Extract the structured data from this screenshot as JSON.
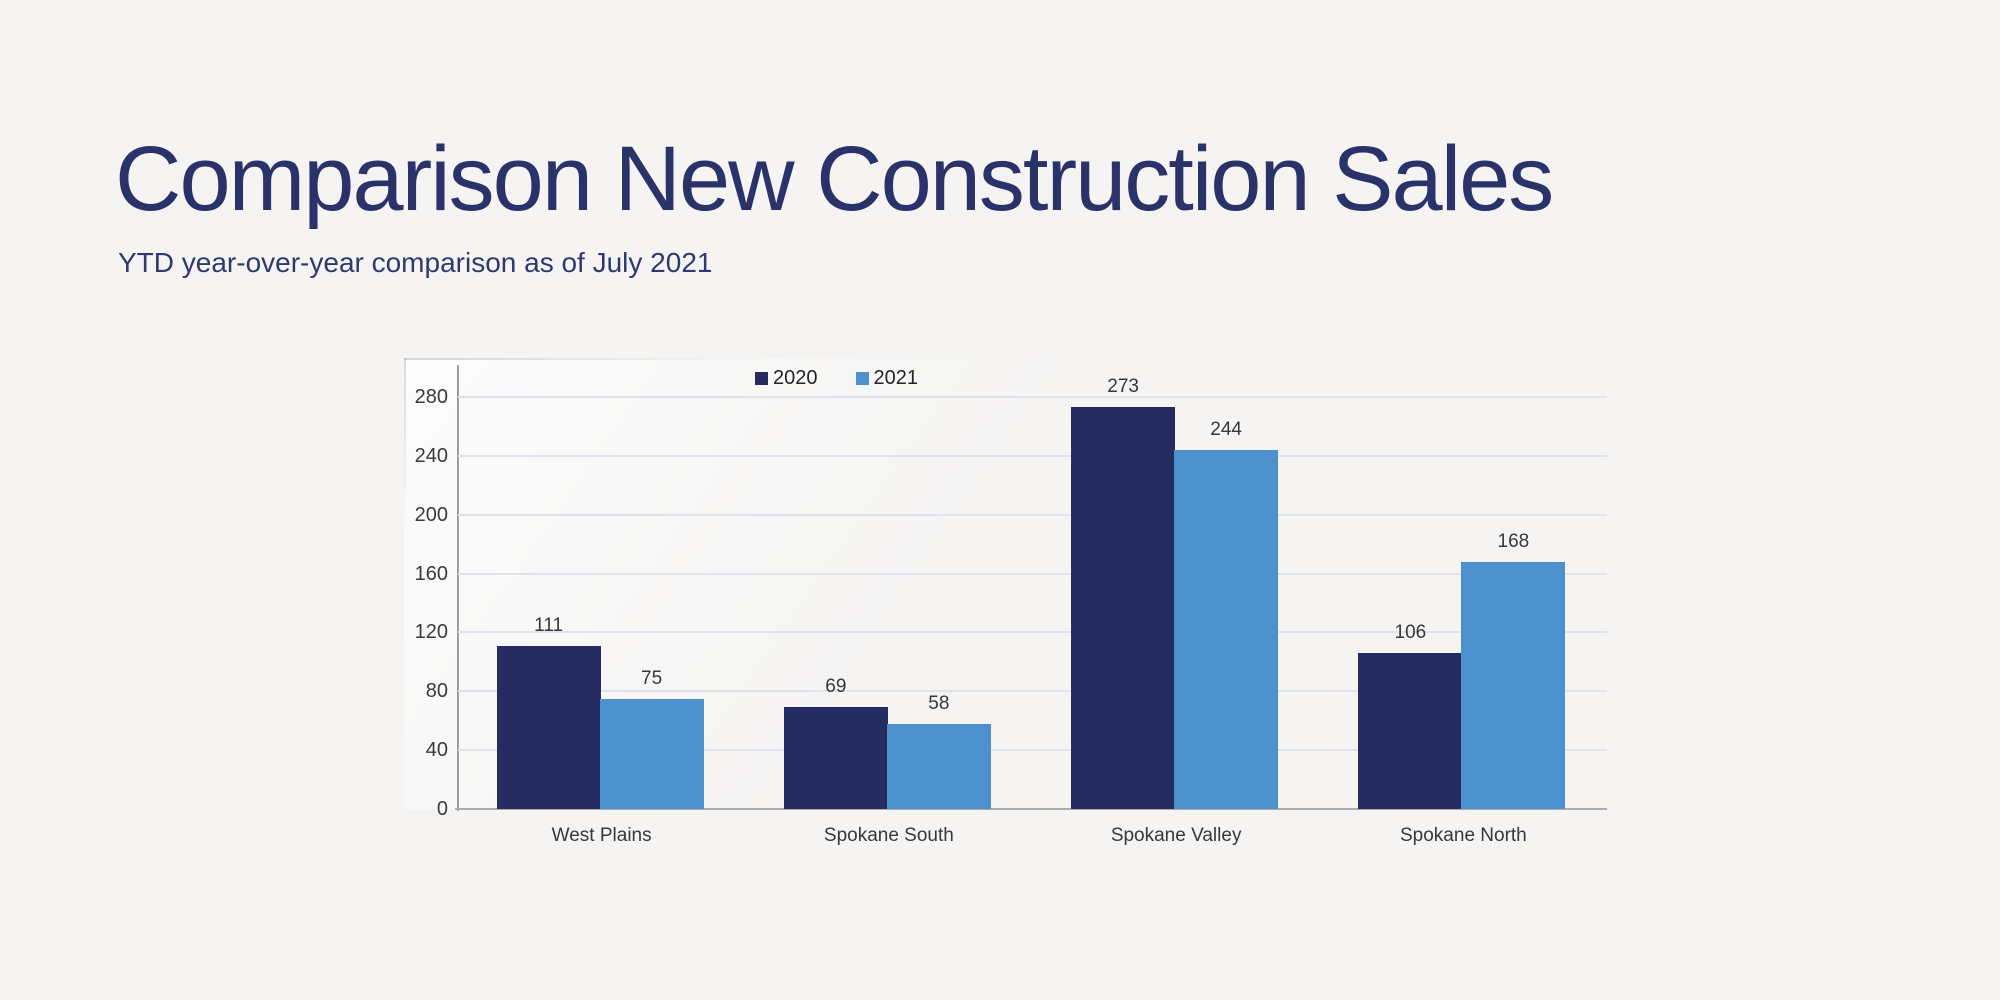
{
  "header": {
    "title": "Comparison New Construction Sales",
    "subtitle": "YTD year-over-year comparison as of July 2021"
  },
  "chart_data": {
    "type": "bar",
    "categories": [
      "West Plains",
      "Spokane South",
      "Spokane Valley",
      "Spokane North"
    ],
    "series": [
      {
        "name": "2020",
        "color": "#262c62",
        "values": [
          111,
          69,
          273,
          106
        ]
      },
      {
        "name": "2021",
        "color": "#4c90cd",
        "values": [
          75,
          58,
          244,
          168
        ]
      }
    ],
    "title": "",
    "xlabel": "",
    "ylabel": "",
    "ylim": [
      0,
      280
    ],
    "yticks": [
      0,
      40,
      80,
      120,
      160,
      200,
      240,
      280
    ],
    "grid": "horizontal",
    "legend_position": "top-center",
    "value_labels": true
  },
  "colors": {
    "background": "#f5f4f3",
    "title_text": "#293269",
    "subtitle_text": "#2e3a6e",
    "chart_text": "#3a3a3a",
    "gridline": "#e0e2ee",
    "axis_line_vertical": "#9e9e9e",
    "axis_line_horizontal": "#acacac",
    "series_2020": "#262c62",
    "series_2021": "#4c90cd"
  }
}
